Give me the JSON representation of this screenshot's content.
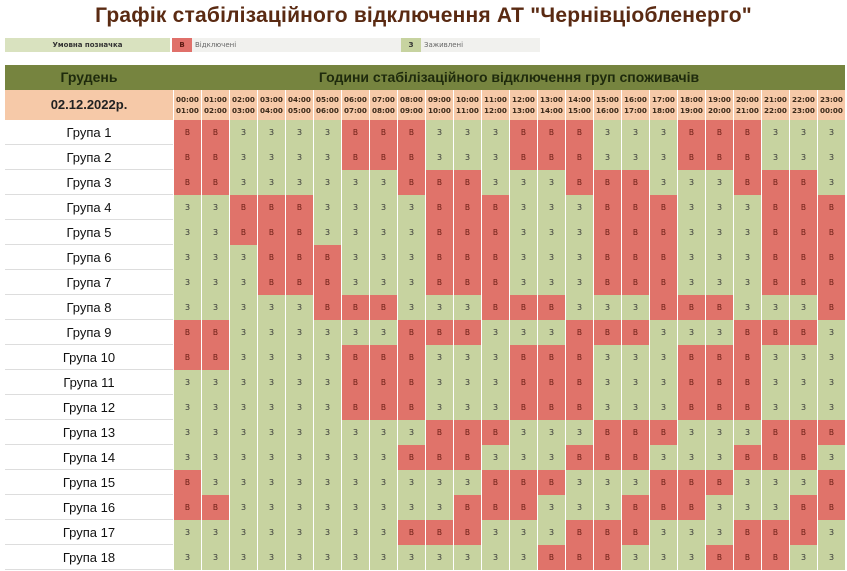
{
  "title": "Графік стабілізаційного відключення АТ \"Чернівціобленерго\"",
  "legend": {
    "label": "Умовна позначка",
    "off_code": "В",
    "off_text": "Відключені",
    "on_code": "З",
    "on_text": "Заживлені",
    "colors": {
      "off": "#e0736a",
      "on": "#c7d3a0"
    }
  },
  "header": {
    "month": "Грудень",
    "title": "Години стабілізаційного відключення груп споживачів",
    "date": "02.12.2022р."
  },
  "hours": [
    {
      "from": "00:00",
      "to": "01:00"
    },
    {
      "from": "01:00",
      "to": "02:00"
    },
    {
      "from": "02:00",
      "to": "03:00"
    },
    {
      "from": "03:00",
      "to": "04:00"
    },
    {
      "from": "04:00",
      "to": "05:00"
    },
    {
      "from": "05:00",
      "to": "06:00"
    },
    {
      "from": "06:00",
      "to": "07:00"
    },
    {
      "from": "07:00",
      "to": "08:00"
    },
    {
      "from": "08:00",
      "to": "09:00"
    },
    {
      "from": "09:00",
      "to": "10:00"
    },
    {
      "from": "10:00",
      "to": "11:00"
    },
    {
      "from": "11:00",
      "to": "12:00"
    },
    {
      "from": "12:00",
      "to": "13:00"
    },
    {
      "from": "13:00",
      "to": "14:00"
    },
    {
      "from": "14:00",
      "to": "15:00"
    },
    {
      "from": "15:00",
      "to": "16:00"
    },
    {
      "from": "16:00",
      "to": "17:00"
    },
    {
      "from": "17:00",
      "to": "18:00"
    },
    {
      "from": "18:00",
      "to": "19:00"
    },
    {
      "from": "19:00",
      "to": "20:00"
    },
    {
      "from": "20:00",
      "to": "21:00"
    },
    {
      "from": "21:00",
      "to": "22:00"
    },
    {
      "from": "22:00",
      "to": "23:00"
    },
    {
      "from": "23:00",
      "to": "00:00"
    }
  ],
  "groups": [
    {
      "name": "Група 1",
      "schedule": "ВВЗЗЗЗВВВЗЗЗВВВЗЗЗВВВЗЗЗ"
    },
    {
      "name": "Група 2",
      "schedule": "ВВЗЗЗЗВВВЗЗЗВВВЗЗЗВВВЗЗЗ"
    },
    {
      "name": "Група 3",
      "schedule": "ВВЗЗЗЗЗЗВВВЗЗЗВВВЗЗЗВВВЗ"
    },
    {
      "name": "Група 4",
      "schedule": "ЗЗВВВЗЗЗЗВВВЗЗЗВВВЗЗЗВВВ"
    },
    {
      "name": "Група 5",
      "schedule": "ЗЗВВВЗЗЗЗВВВЗЗЗВВВЗЗЗВВВ"
    },
    {
      "name": "Група 6",
      "schedule": "ЗЗЗВВВЗЗЗВВВЗЗЗВВВЗЗЗВВВ"
    },
    {
      "name": "Група 7",
      "schedule": "ЗЗЗВВВЗЗЗВВВЗЗЗВВВЗЗЗВВВ"
    },
    {
      "name": "Група 8",
      "schedule": "ЗЗЗЗЗВВВЗЗЗВВВЗЗЗВВВЗЗЗВ"
    },
    {
      "name": "Група 9",
      "schedule": "ВВЗЗЗЗЗЗВВВЗЗЗВВВЗЗЗВВВЗ"
    },
    {
      "name": "Група 10",
      "schedule": "ВВЗЗЗЗВВВЗЗЗВВВЗЗЗВВВЗЗЗ"
    },
    {
      "name": "Група 11",
      "schedule": "ЗЗЗЗЗЗВВВЗЗЗВВВЗЗЗВВВЗЗЗ"
    },
    {
      "name": "Група 12",
      "schedule": "ЗЗЗЗЗЗВВВЗЗЗВВВЗЗЗВВВЗЗЗ"
    },
    {
      "name": "Група 13",
      "schedule": "ЗЗЗЗЗЗЗЗЗВВВЗЗЗВВВЗЗЗВВВ"
    },
    {
      "name": "Група 14",
      "schedule": "ЗЗЗЗЗЗЗЗВВВЗЗЗВВВЗЗЗВВВЗ"
    },
    {
      "name": "Група 15",
      "schedule": "ВЗЗЗЗЗЗЗЗЗЗВВВЗЗЗВВВЗЗЗВ"
    },
    {
      "name": "Група 16",
      "schedule": "ВВЗЗЗЗЗЗЗЗВВВЗЗЗВВВЗЗЗВВ"
    },
    {
      "name": "Група 17",
      "schedule": "ЗЗЗЗЗЗЗЗВВВЗЗЗВВВЗЗЗВВВЗ"
    },
    {
      "name": "Група 18",
      "schedule": "ЗЗЗЗЗЗЗЗЗЗЗЗЗВВВЗЗЗВВВЗЗ"
    }
  ]
}
